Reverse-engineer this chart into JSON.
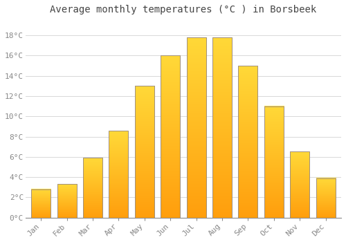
{
  "months": [
    "Jan",
    "Feb",
    "Mar",
    "Apr",
    "May",
    "Jun",
    "Jul",
    "Aug",
    "Sep",
    "Oct",
    "Nov",
    "Dec"
  ],
  "temperatures": [
    2.8,
    3.3,
    5.9,
    8.6,
    13.0,
    16.0,
    17.8,
    17.8,
    15.0,
    11.0,
    6.5,
    3.9
  ],
  "bar_color_main": "#FFB800",
  "bar_color_top": "#FFD040",
  "bar_color_bottom": "#FFA000",
  "bar_edge_color": "#A09080",
  "title": "Average monthly temperatures (°C ) in Borsbeek",
  "ylabel_ticks": [
    "0°C",
    "2°C",
    "4°C",
    "6°C",
    "8°C",
    "10°C",
    "12°C",
    "14°C",
    "16°C",
    "18°C"
  ],
  "ytick_values": [
    0,
    2,
    4,
    6,
    8,
    10,
    12,
    14,
    16,
    18
  ],
  "ylim": [
    0,
    19.5
  ],
  "background_color": "#ffffff",
  "grid_color": "#d8d8d8",
  "title_fontsize": 10,
  "tick_fontsize": 8,
  "title_color": "#444444",
  "tick_color": "#888888",
  "bar_width": 0.75,
  "figsize": [
    5.0,
    3.5
  ],
  "dpi": 100
}
